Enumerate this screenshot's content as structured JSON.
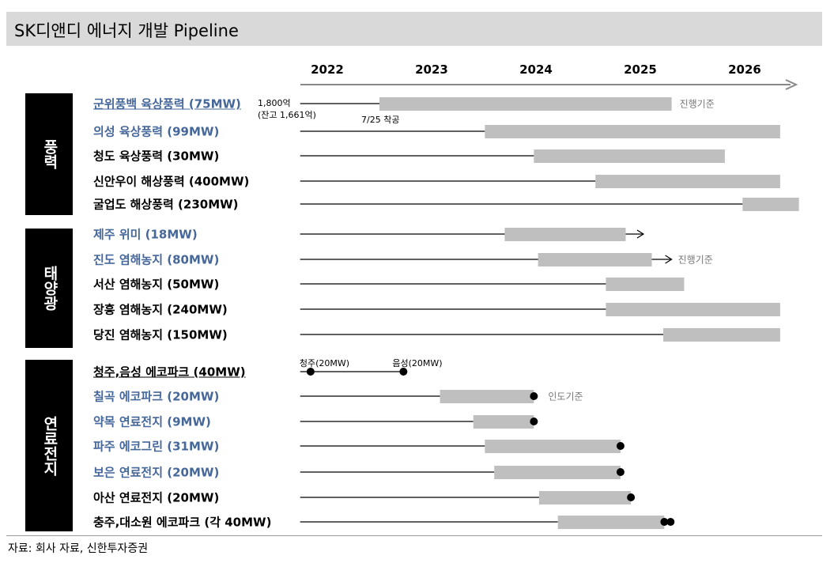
{
  "title": "SK디앤디 에너지 개발 Pipeline",
  "footer": "자료: 회사 자료, 신한투자증권",
  "chart_data": {
    "type": "gantt",
    "x_ticks": [
      "2022",
      "2023",
      "2024",
      "2025",
      "2026"
    ],
    "xlim": [
      2021.74,
      2026.7
    ],
    "colors": {
      "bar": "#bfbfbf",
      "line": "#000000",
      "label_blue": "#46679a",
      "note": "#777777"
    },
    "categories": [
      {
        "name": "풍력",
        "rows": [
          0,
          1,
          2,
          3,
          4
        ]
      },
      {
        "name": "태양광",
        "rows": [
          5,
          6,
          7,
          8,
          9
        ]
      },
      {
        "name": "연료전지",
        "rows": [
          10,
          11,
          12,
          13,
          14,
          15,
          16
        ]
      }
    ],
    "rows": [
      {
        "label": "군위풍백 육상풍력 (75MW)",
        "blue": true,
        "underline": true,
        "bar": [
          2022.5,
          2025.3
        ],
        "note": "진행기준",
        "side_note": [
          "1,800억",
          "(잔고 1,661억)"
        ],
        "start_note": "7/25 착공"
      },
      {
        "label": "의성 육상풍력 (99MW)",
        "blue": true,
        "bar": [
          2023.51,
          2026.34
        ]
      },
      {
        "label": "청도 육상풍력 (30MW)",
        "bar": [
          2023.98,
          2025.81
        ]
      },
      {
        "label": "신안우이 해상풍력 (400MW)",
        "bar": [
          2024.57,
          2026.34
        ]
      },
      {
        "label": "굴업도 해상풍력 (230MW)",
        "bar": [
          2025.98,
          2026.52
        ]
      },
      {
        "label": "제주 위미 (18MW)",
        "blue": true,
        "bar": [
          2023.7,
          2024.86
        ],
        "arrow": 2025.03
      },
      {
        "label": "진도 염해농지 (80MW)",
        "blue": true,
        "bar": [
          2024.02,
          2025.11
        ],
        "arrow": 2025.3,
        "note": "진행기준"
      },
      {
        "label": "서산 염해농지 (50MW)",
        "bar": [
          2024.67,
          2025.42
        ]
      },
      {
        "label": "장흥 염해농지 (240MW)",
        "bar": [
          2024.67,
          2026.34
        ]
      },
      {
        "label": "당진 염해농지 (150MW)",
        "bar": [
          2025.22,
          2026.34
        ]
      },
      {
        "label": "청주,음성 에코파크 (40MW)",
        "underline": true,
        "line_end": 2022.73,
        "dots": [
          2021.84,
          2022.73
        ],
        "dot_labels": [
          "청주(20MW)",
          "음성(20MW)"
        ]
      },
      {
        "label": "칠곡 에코파크 (20MW)",
        "blue": true,
        "bar": [
          2023.08,
          2023.98
        ],
        "dots": [
          2023.98
        ],
        "note": "인도기준"
      },
      {
        "label": "약목 연료전지 (9MW)",
        "blue": true,
        "bar": [
          2023.4,
          2023.98
        ],
        "dots": [
          2023.98
        ]
      },
      {
        "label": "파주 에코그린 (31MW)",
        "blue": true,
        "bar": [
          2023.51,
          2024.81
        ],
        "dots": [
          2024.81
        ]
      },
      {
        "label": "보은 연료전지 (20MW)",
        "blue": true,
        "bar": [
          2023.6,
          2024.81
        ],
        "dots": [
          2024.81
        ]
      },
      {
        "label": "아산 연료전지 (20MW)",
        "bar": [
          2024.03,
          2024.91
        ],
        "dots": [
          2024.91
        ]
      },
      {
        "label": "충주,대소원 에코파크 (각 40MW)",
        "bar": [
          2024.21,
          2025.23
        ],
        "dots": [
          2025.23,
          2025.29
        ]
      }
    ]
  }
}
